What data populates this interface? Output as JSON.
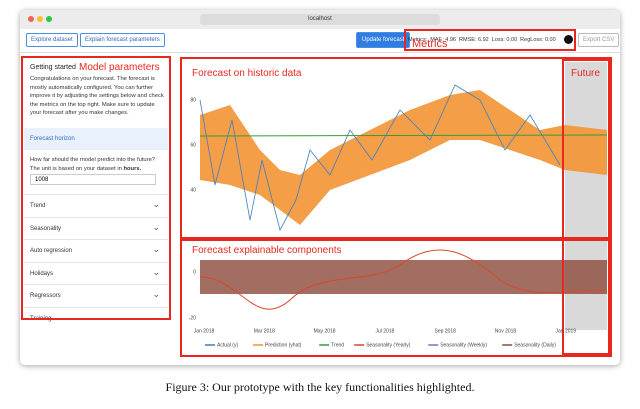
{
  "window": {
    "url": "localhost"
  },
  "toolbar": {
    "explore": "Explore dataset",
    "explain": "Explain forecast parameters",
    "update": "Update forecast",
    "metrics": "Metrics:  MAE: 4.96  RMSE: 6.92  Loss: 0.00  RegLoss: 0.00",
    "export": "Export CSV"
  },
  "sidebar": {
    "title": "Getting started",
    "intro": "Congratulations on your forecast. The forecast is mostly automatically configured. You can further improve it by adjusting the settings below and check the metrics on the top right. Make sure to update your forecast after you make changes.",
    "horizon": {
      "label": "Forecast horizon",
      "question": "How far should the model predict into the future? The unit is based on your dataset in",
      "unit": "hours.",
      "value": "1008"
    },
    "sections": [
      "Trend",
      "Seasonality",
      "Auto regression",
      "Holidays",
      "Regressors",
      "Training"
    ]
  },
  "chart": {
    "yticks": [
      "80",
      "60",
      "40"
    ],
    "y2ticks": [
      "0",
      "-20"
    ],
    "xticks": [
      "Jan 2018",
      "Mar 2018",
      "May 2018",
      "Jul 2018",
      "Sep 2018",
      "Nov 2018",
      "Jan 2019"
    ],
    "legend": [
      "Actual (y)",
      "Prediction (yhat)",
      "Trend",
      "Seasonality (Yearly)",
      "Seasonality (Weekly)",
      "Seasonality (Daily)"
    ]
  },
  "annotations": {
    "metrics": "Metrics",
    "params": "Model parameters",
    "historic": "Forecast on historic data",
    "future": "Future",
    "components": "Forecast explainable components"
  },
  "caption": "Figure 3: Our prototype with the key functionalities highlighted."
}
